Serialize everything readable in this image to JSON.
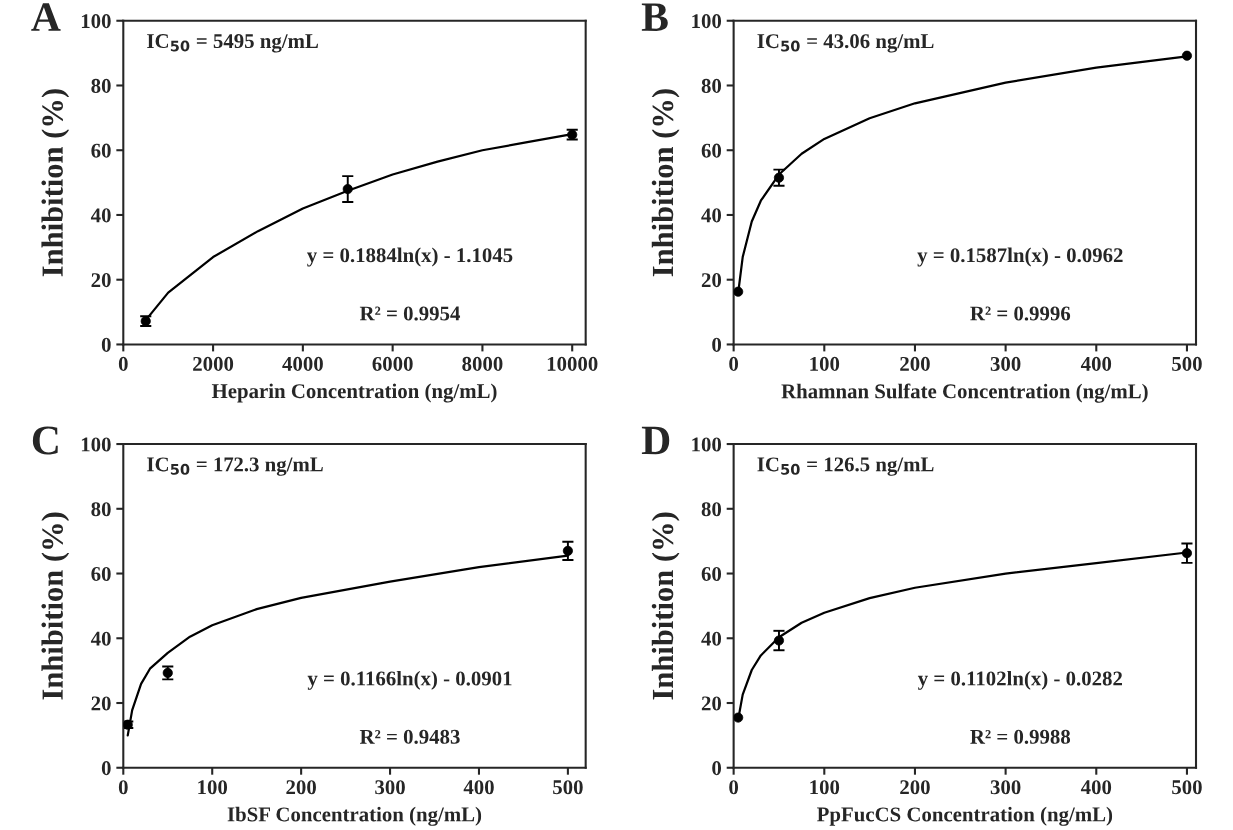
{
  "chart_data": [
    {
      "type": "scatter",
      "title": "A",
      "xlabel": "Heparin Concentration (ng/mL)",
      "ylabel": "Inhibition (%)",
      "xlim": [
        0,
        10300
      ],
      "xticks": [
        0,
        2000,
        4000,
        6000,
        8000,
        10000
      ],
      "ylim": [
        0,
        100
      ],
      "yticks": [
        0,
        20,
        40,
        60,
        80,
        100
      ],
      "grid": false,
      "marker": "circle",
      "annotations": [
        "IC$_{50}$ = 5495 ng/mL",
        "y = 0.1884ln(x) - 1.1045",
        "R² = 0.9954"
      ],
      "series": [
        {
          "color": "#000000",
          "x": [
            500,
            5000,
            10000
          ],
          "values": [
            7.2,
            48,
            64.8
          ],
          "errors": [
            1.5,
            4,
            1.5
          ]
        },
        {
          "type": "line",
          "color": "#000000",
          "marker": "none",
          "x": [
            500,
            1000,
            2000,
            3000,
            4000,
            5000,
            6000,
            7000,
            8000,
            9000,
            10000
          ],
          "values": [
            7.5,
            16,
            27,
            35,
            42,
            47.5,
            52.5,
            56.5,
            60,
            62.5,
            65
          ]
        }
      ]
    },
    {
      "type": "scatter",
      "title": "B",
      "xlabel": "Rhamnan Sulfate Concentration (ng/mL)",
      "ylabel": "Inhibition (%)",
      "xlim": [
        0,
        510
      ],
      "xticks": [
        0,
        100,
        200,
        300,
        400,
        500
      ],
      "ylim": [
        0,
        100
      ],
      "yticks": [
        0,
        20,
        40,
        60,
        80,
        100
      ],
      "grid": false,
      "marker": "circle",
      "annotations": [
        "IC$_{50}$ = 43.06 ng/mL",
        "y = 0.1587ln(x) - 0.0962",
        "R² = 0.9996"
      ],
      "series": [
        {
          "color": "#000000",
          "x": [
            5,
            50,
            500
          ],
          "values": [
            16.3,
            51.5,
            89.2
          ],
          "errors": [
            null,
            2.5,
            null
          ]
        },
        {
          "type": "line",
          "color": "#000000",
          "marker": "none",
          "x": [
            5,
            10,
            20,
            30,
            50,
            75,
            100,
            150,
            200,
            300,
            400,
            500
          ],
          "values": [
            15.9,
            27.0,
            38.0,
            44.4,
            52.5,
            58.9,
            63.5,
            69.9,
            74.5,
            80.9,
            85.5,
            89.0
          ]
        }
      ]
    },
    {
      "type": "scatter",
      "title": "C",
      "xlabel": "IbSF Concentration (ng/mL)",
      "ylabel": "Inhibition (%)",
      "xlim": [
        0,
        520
      ],
      "xticks": [
        0,
        100,
        200,
        300,
        400,
        500
      ],
      "ylim": [
        0,
        100
      ],
      "yticks": [
        0,
        20,
        40,
        60,
        80,
        100
      ],
      "grid": false,
      "marker": "circle",
      "annotations": [
        "IC$_{50}$ = 172.3 ng/mL",
        "y = 0.1166ln(x) - 0.0901",
        "R² = 0.9483"
      ],
      "series": [
        {
          "color": "#000000",
          "x": [
            5,
            50,
            500
          ],
          "values": [
            13.3,
            29.3,
            67
          ],
          "errors": [
            1,
            2,
            2.8
          ]
        },
        {
          "type": "line",
          "color": "#000000",
          "marker": "none",
          "x": [
            5,
            10,
            20,
            30,
            50,
            75,
            100,
            150,
            200,
            300,
            400,
            500
          ],
          "values": [
            10,
            17.8,
            25.9,
            30.6,
            35.5,
            40.5,
            44,
            49,
            52.5,
            57.5,
            62,
            65.5
          ]
        }
      ]
    },
    {
      "type": "scatter",
      "title": "D",
      "xlabel": "PpFucCS Concentration (ng/mL)",
      "ylabel": "Inhibition (%)",
      "xlim": [
        0,
        510
      ],
      "xticks": [
        0,
        100,
        200,
        300,
        400,
        500
      ],
      "ylim": [
        0,
        100
      ],
      "yticks": [
        0,
        20,
        40,
        60,
        80,
        100
      ],
      "grid": false,
      "marker": "circle",
      "annotations": [
        "IC$_{50}$ = 126.5 ng/mL",
        "y = 0.1102ln(x) - 0.0282",
        "R² = 0.9988"
      ],
      "series": [
        {
          "color": "#000000",
          "x": [
            5,
            50,
            500
          ],
          "values": [
            15.5,
            39.3,
            66.3
          ],
          "errors": [
            null,
            3,
            3
          ]
        },
        {
          "type": "line",
          "color": "#000000",
          "marker": "none",
          "x": [
            5,
            10,
            20,
            30,
            50,
            75,
            100,
            150,
            200,
            300,
            400,
            500
          ],
          "values": [
            14.9,
            22.6,
            30.2,
            34.7,
            40.3,
            44.8,
            47.9,
            52.4,
            55.6,
            60.0,
            63.2,
            66.5
          ]
        }
      ]
    }
  ]
}
